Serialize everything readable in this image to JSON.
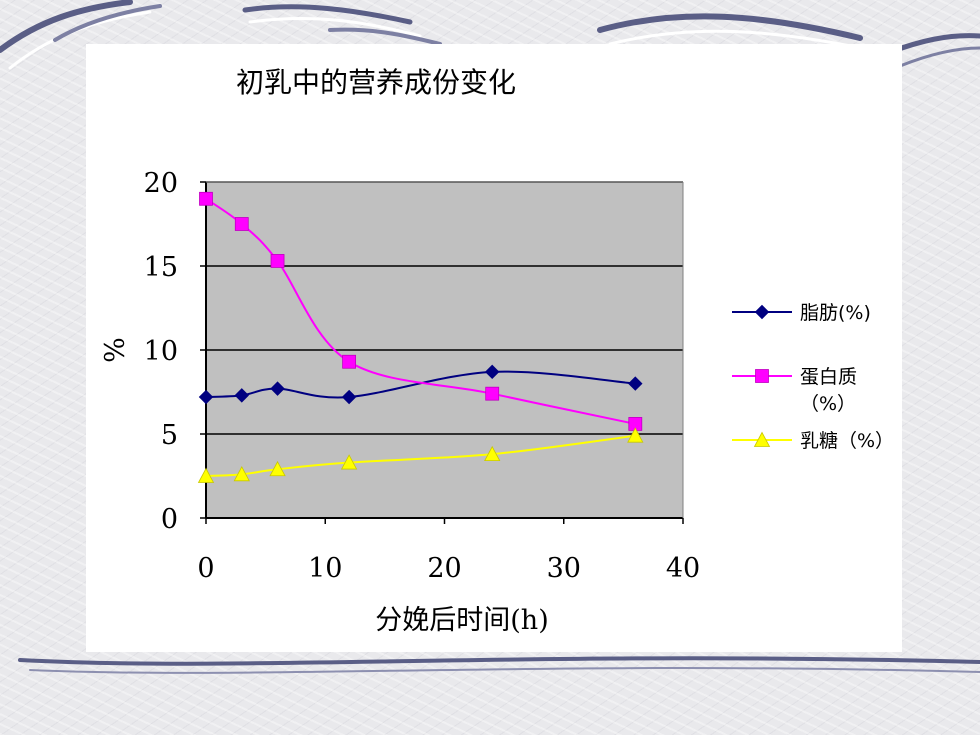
{
  "chart_data": {
    "type": "line",
    "title": "初乳中的营养成份变化",
    "xlabel": "分娩后时间(h)",
    "ylabel": "%",
    "xlim": [
      0,
      40
    ],
    "ylim": [
      0,
      20
    ],
    "xticks": [
      "0",
      "10",
      "20",
      "30",
      "40"
    ],
    "yticks": [
      "0",
      "5",
      "10",
      "15",
      "20"
    ],
    "grid": "horizontal",
    "plot_background": "#c0c0c0",
    "legend_position": "right",
    "series": [
      {
        "name": "脂肪(%)",
        "color": "#000080",
        "marker": "diamond",
        "x": [
          0,
          3,
          6,
          12,
          24,
          36
        ],
        "y": [
          7.2,
          7.3,
          7.7,
          7.2,
          8.7,
          8.0
        ]
      },
      {
        "name": "蛋白质（%）",
        "color": "#ff00ff",
        "marker": "square",
        "x": [
          0,
          3,
          6,
          12,
          24,
          36
        ],
        "y": [
          19.0,
          17.5,
          15.3,
          9.3,
          7.4,
          5.6
        ]
      },
      {
        "name": "乳糖（%）",
        "color": "#ffff00",
        "marker": "triangle",
        "x": [
          0,
          3,
          6,
          12,
          24,
          36
        ],
        "y": [
          2.5,
          2.6,
          2.9,
          3.3,
          3.8,
          4.9
        ]
      }
    ]
  }
}
